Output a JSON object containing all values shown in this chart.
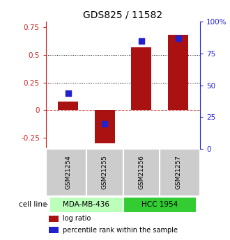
{
  "title": "GDS825 / 11582",
  "samples": [
    "GSM21254",
    "GSM21255",
    "GSM21256",
    "GSM21257"
  ],
  "log_ratio": [
    0.08,
    -0.3,
    0.57,
    0.68
  ],
  "percentile_rank": [
    0.44,
    0.2,
    0.85,
    0.87
  ],
  "cell_lines": [
    {
      "label": "MDA-MB-436",
      "samples": [
        0,
        1
      ],
      "color": "#bbffbb"
    },
    {
      "label": "HCC 1954",
      "samples": [
        2,
        3
      ],
      "color": "#33cc33"
    }
  ],
  "left_ylim": [
    -0.35,
    0.8
  ],
  "right_ylim": [
    0.0,
    1.0
  ],
  "left_yticks": [
    -0.25,
    0.0,
    0.25,
    0.5,
    0.75
  ],
  "right_yticks": [
    0.0,
    0.25,
    0.5,
    0.75,
    1.0
  ],
  "right_yticklabels": [
    "0",
    "25",
    "50",
    "75",
    "100%"
  ],
  "left_yticklabels": [
    "-0.25",
    "0",
    "0.25",
    "0.5",
    "0.75"
  ],
  "hlines_dotted": [
    0.25,
    0.5
  ],
  "hline_dashed": 0.0,
  "bar_color": "#aa1111",
  "dot_color": "#2222cc",
  "bar_width": 0.55,
  "dot_size": 35,
  "xlabel_color_left": "#cc2222",
  "xlabel_color_right": "#2222cc",
  "legend_bar_label": "log ratio",
  "legend_dot_label": "percentile rank within the sample",
  "cell_line_label": "cell line",
  "background_plot": "#ffffff",
  "tick_area_bg": "#cccccc"
}
